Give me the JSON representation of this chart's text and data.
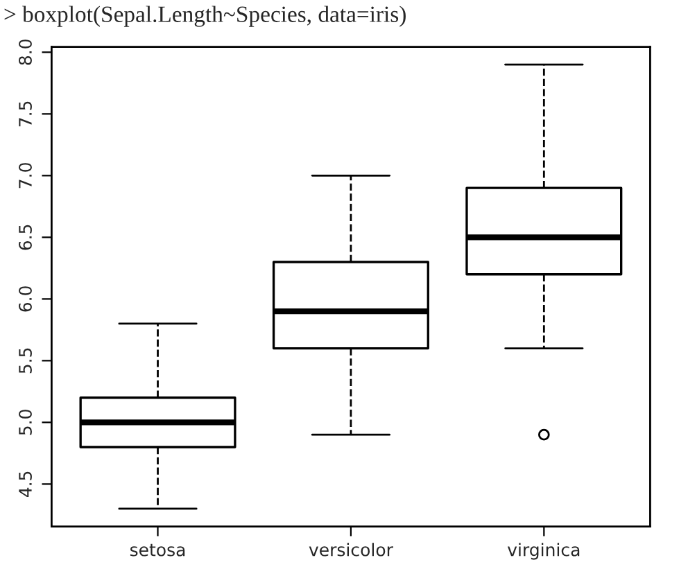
{
  "chart_data": {
    "type": "box",
    "title": "> boxplot(Sepal.Length~Species, data=iris)",
    "categories": [
      "setosa",
      "versicolor",
      "virginica"
    ],
    "boxes": [
      {
        "low": 4.3,
        "q1": 4.8,
        "median": 5.0,
        "q3": 5.2,
        "high": 5.8
      },
      {
        "low": 4.9,
        "q1": 5.6,
        "median": 5.9,
        "q3": 6.3,
        "high": 7.0
      },
      {
        "low": 5.6,
        "q1": 6.2,
        "median": 6.5,
        "q3": 6.9,
        "high": 7.9,
        "outliers": [
          4.9
        ]
      }
    ],
    "ylim": [
      4.156,
      8.044
    ],
    "yticks": [
      4.5,
      {
        "value": 5.0,
        "label": "5.0"
      },
      5.5,
      {
        "value": 6.0,
        "label": "6.0"
      },
      6.5,
      {
        "value": 7.0,
        "label": "7.0"
      },
      7.5,
      {
        "value": 8.0,
        "label": "8.0"
      }
    ],
    "grid": false,
    "line_style": "dashed"
  }
}
